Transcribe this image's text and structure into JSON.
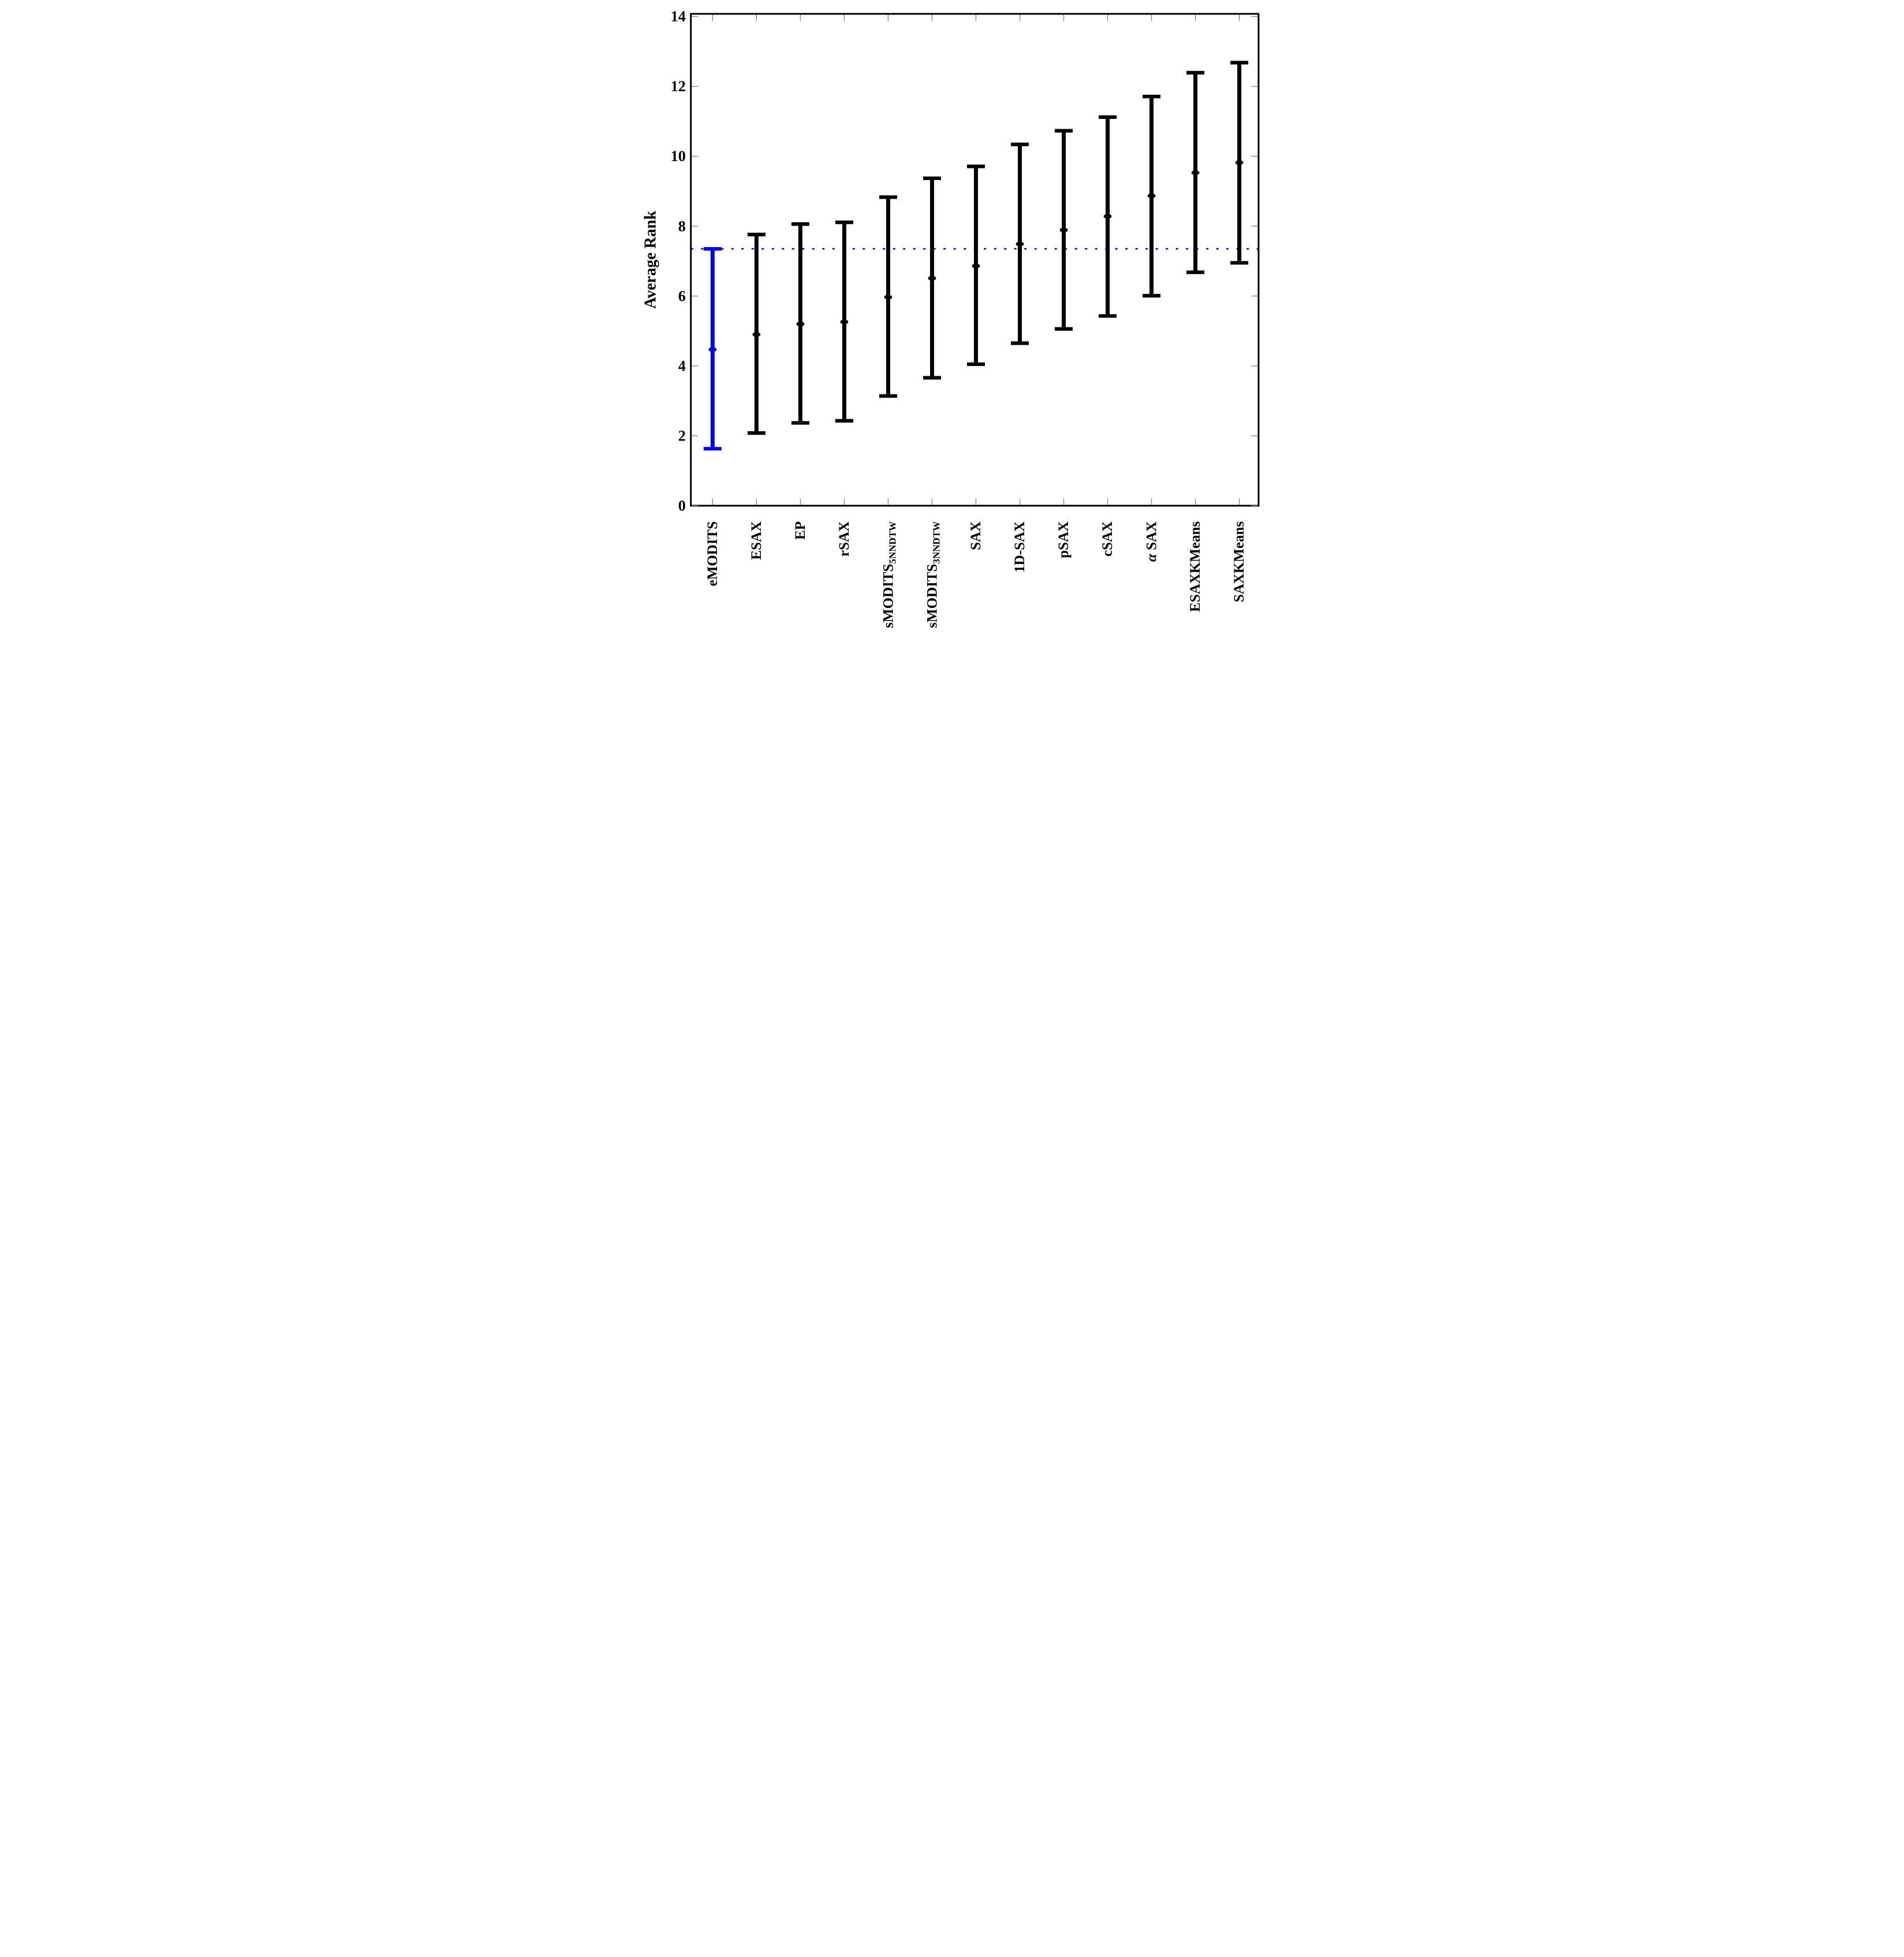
{
  "chart_data": {
    "type": "errorbar",
    "title": "",
    "xlabel": "",
    "ylabel": "Average Rank",
    "ylim": [
      0,
      14
    ],
    "yticks": [
      0,
      2,
      4,
      6,
      8,
      10,
      12,
      14
    ],
    "grid": false,
    "legend": "none",
    "frame": "box",
    "reference_line": {
      "value": 7.35,
      "color": "#0000ff",
      "style": "dotted"
    },
    "categories": [
      "eMODITS",
      "ESAX",
      "EP",
      "rSAX",
      "sMODITS5NNDTW",
      "sMODITS3NNDTW",
      "SAX",
      "1D-SAX",
      "pSAX",
      "cSAX",
      "α SAX",
      "ESAXKMeans",
      "SAXKMeans"
    ],
    "points": [
      {
        "label": "eMODITS",
        "mean": 4.47,
        "lower": 1.63,
        "upper": 7.35,
        "color": "#0000ff"
      },
      {
        "label": "ESAX",
        "mean": 4.9,
        "lower": 2.08,
        "upper": 7.76,
        "color": "#000000"
      },
      {
        "label": "EP",
        "mean": 5.2,
        "lower": 2.37,
        "upper": 8.06,
        "color": "#000000"
      },
      {
        "label": "rSAX",
        "mean": 5.26,
        "lower": 2.43,
        "upper": 8.11,
        "color": "#000000"
      },
      {
        "label": "sMODITS",
        "label_subscript": "5NNDTW",
        "mean": 5.97,
        "lower": 3.14,
        "upper": 8.83,
        "color": "#000000"
      },
      {
        "label": "sMODITS",
        "label_subscript": "3NNDTW",
        "mean": 6.51,
        "lower": 3.66,
        "upper": 9.37,
        "color": "#000000"
      },
      {
        "label": "SAX",
        "mean": 6.86,
        "lower": 4.05,
        "upper": 9.71,
        "color": "#000000"
      },
      {
        "label": "1D-SAX",
        "mean": 7.49,
        "lower": 4.65,
        "upper": 10.34,
        "color": "#000000"
      },
      {
        "label": "pSAX",
        "mean": 7.89,
        "lower": 5.06,
        "upper": 10.73,
        "color": "#000000"
      },
      {
        "label": "cSAX",
        "mean": 8.28,
        "lower": 5.43,
        "upper": 11.12,
        "color": "#000000"
      },
      {
        "label": "α SAX",
        "label_italic_prefix": "α",
        "label_rest": " SAX",
        "mean": 8.87,
        "lower": 6.01,
        "upper": 11.71,
        "color": "#000000"
      },
      {
        "label": "ESAXKMeans",
        "mean": 9.53,
        "lower": 6.68,
        "upper": 12.39,
        "color": "#000000"
      },
      {
        "label": "SAXKMeans",
        "mean": 9.82,
        "lower": 6.95,
        "upper": 12.68,
        "color": "#000000"
      }
    ],
    "colors": {
      "highlight": "#0000ff",
      "default": "#000000",
      "tick": "#808080",
      "frame": "#000000",
      "background": "#ffffff"
    }
  }
}
